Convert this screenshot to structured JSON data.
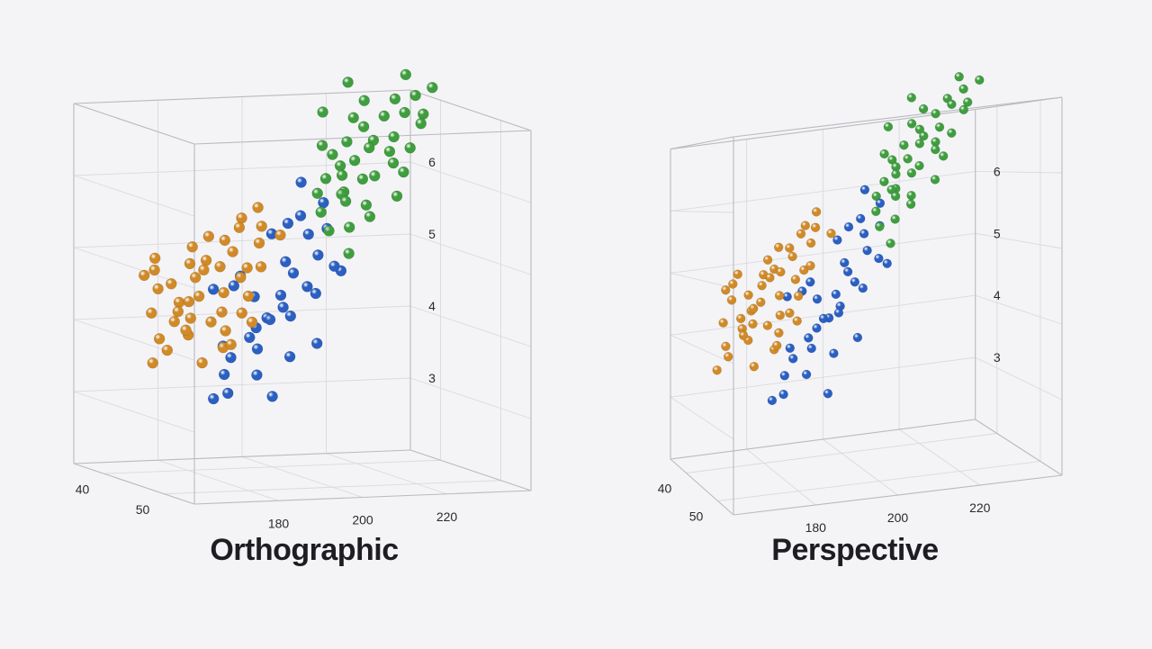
{
  "chart_data": [
    {
      "type": "scatter",
      "projection": "Orthographic",
      "title": "Orthographic",
      "x_ticks": [
        "180",
        "200",
        "220"
      ],
      "y_ticks": [
        "40",
        "50"
      ],
      "z_ticks": [
        "3",
        "4",
        "5",
        "6"
      ],
      "xlim": [
        160,
        240
      ],
      "ylim": [
        35,
        55
      ],
      "zlim": [
        2,
        7
      ],
      "grid": true,
      "series": [
        {
          "color": "#d18a27",
          "points": [
            [
              172,
              46,
              4.3
            ],
            [
              168,
              48,
              4.2
            ],
            [
              170,
              42,
              4.6
            ],
            [
              174,
              50,
              4.0
            ],
            [
              176,
              44,
              4.8
            ],
            [
              178,
              47,
              4.4
            ],
            [
              166,
              45,
              4.0
            ],
            [
              180,
              43,
              5.0
            ],
            [
              182,
              46,
              5.2
            ],
            [
              184,
              49,
              5.4
            ],
            [
              179,
              41,
              4.9
            ],
            [
              173,
              52,
              4.1
            ],
            [
              171,
              39,
              4.7
            ],
            [
              177,
              51,
              4.5
            ],
            [
              175,
              38,
              4.9
            ],
            [
              186,
              48,
              5.6
            ],
            [
              183,
              44,
              5.3
            ],
            [
              169,
              50,
              3.8
            ],
            [
              167,
              43,
              4.3
            ],
            [
              181,
              40,
              5.1
            ],
            [
              185,
              45,
              5.5
            ],
            [
              174,
              46,
              4.6
            ],
            [
              176,
              49,
              4.2
            ],
            [
              178,
              44,
              4.9
            ],
            [
              172,
              40,
              4.8
            ],
            [
              170,
              47,
              4.1
            ],
            [
              180,
              50,
              4.7
            ],
            [
              182,
              42,
              5.3
            ],
            [
              184,
              47,
              5.0
            ],
            [
              188,
              46,
              5.8
            ],
            [
              165,
              47,
              3.9
            ],
            [
              173,
              45,
              4.5
            ],
            [
              175,
              42,
              4.4
            ],
            [
              177,
              48,
              4.7
            ],
            [
              179,
              46,
              5.0
            ],
            [
              181,
              48,
              4.9
            ],
            [
              183,
              50,
              5.1
            ],
            [
              171,
              44,
              4.2
            ],
            [
              169,
              46,
              4.4
            ],
            [
              187,
              44,
              5.6
            ],
            [
              163,
              46,
              3.7
            ],
            [
              189,
              49,
              5.5
            ],
            [
              178,
              52,
              4.4
            ],
            [
              176,
              40,
              4.6
            ],
            [
              174,
              48,
              4.3
            ]
          ]
        },
        {
          "color": "#2b5fc2",
          "points": [
            [
              186,
              46,
              4.0
            ],
            [
              188,
              48,
              4.3
            ],
            [
              190,
              44,
              4.5
            ],
            [
              192,
              47,
              4.6
            ],
            [
              194,
              50,
              4.8
            ],
            [
              184,
              43,
              3.8
            ],
            [
              196,
              45,
              5.0
            ],
            [
              198,
              49,
              5.2
            ],
            [
              200,
              46,
              5.4
            ],
            [
              182,
              50,
              3.6
            ],
            [
              187,
              52,
              3.9
            ],
            [
              191,
              41,
              4.7
            ],
            [
              193,
              44,
              4.2
            ],
            [
              195,
              47,
              4.9
            ],
            [
              197,
              42,
              5.3
            ],
            [
              189,
              45,
              4.1
            ],
            [
              185,
              48,
              3.9
            ],
            [
              199,
              51,
              5.1
            ],
            [
              201,
              44,
              5.6
            ],
            [
              203,
              47,
              5.5
            ],
            [
              180,
              46,
              3.5
            ],
            [
              178,
              48,
              3.3
            ],
            [
              205,
              45,
              5.8
            ],
            [
              190,
              50,
              4.4
            ],
            [
              192,
              53,
              4.1
            ],
            [
              188,
              42,
              4.6
            ],
            [
              194,
              46,
              4.4
            ],
            [
              196,
              50,
              4.7
            ],
            [
              183,
              45,
              3.7
            ],
            [
              186,
              40,
              4.5
            ],
            [
              202,
              50,
              5.0
            ],
            [
              204,
              42,
              6.0
            ],
            [
              176,
              47,
              3.2
            ],
            [
              198,
              44,
              5.5
            ],
            [
              190,
              47,
              3.2
            ]
          ]
        },
        {
          "color": "#3f9e3e",
          "points": [
            [
              205,
              48,
              6.0
            ],
            [
              208,
              46,
              6.2
            ],
            [
              210,
              50,
              6.3
            ],
            [
              212,
              44,
              6.6
            ],
            [
              214,
              47,
              6.7
            ],
            [
              216,
              49,
              6.8
            ],
            [
              206,
              52,
              5.8
            ],
            [
              209,
              42,
              6.5
            ],
            [
              211,
              46,
              6.4
            ],
            [
              213,
              51,
              6.5
            ],
            [
              215,
              43,
              6.9
            ],
            [
              218,
              46,
              7.0
            ],
            [
              220,
              48,
              7.1
            ],
            [
              203,
              46,
              5.7
            ],
            [
              207,
              44,
              6.1
            ],
            [
              204,
              50,
              5.6
            ],
            [
              222,
              45,
              7.2
            ],
            [
              217,
              51,
              6.7
            ],
            [
              219,
              42,
              7.1
            ],
            [
              210,
              48,
              6.2
            ],
            [
              212,
              40,
              6.9
            ],
            [
              214,
              52,
              6.4
            ],
            [
              216,
              44,
              6.8
            ],
            [
              206,
              48,
              5.9
            ],
            [
              208,
              50,
              5.9
            ],
            [
              224,
              47,
              7.3
            ],
            [
              221,
              50,
              7.0
            ],
            [
              211,
              53,
              6.1
            ],
            [
              209,
              45,
              6.3
            ],
            [
              213,
              47,
              6.6
            ],
            [
              226,
              44,
              7.5
            ],
            [
              202,
              48,
              5.5
            ],
            [
              207,
              47,
              6.0
            ],
            [
              215,
              49,
              6.6
            ],
            [
              218,
              40,
              7.3
            ],
            [
              223,
              49,
              7.1
            ],
            [
              205,
              44,
              5.9
            ],
            [
              210,
              43,
              6.4
            ],
            [
              228,
              47,
              7.4
            ],
            [
              201,
              52,
              5.3
            ]
          ]
        }
      ]
    },
    {
      "type": "scatter",
      "projection": "Perspective",
      "title": "Perspective",
      "x_ticks": [
        "180",
        "200",
        "220"
      ],
      "y_ticks": [
        "40",
        "50"
      ],
      "z_ticks": [
        "3",
        "4",
        "5",
        "6"
      ],
      "xlim": [
        160,
        240
      ],
      "ylim": [
        35,
        55
      ],
      "zlim": [
        2,
        7
      ],
      "grid": true
    }
  ]
}
